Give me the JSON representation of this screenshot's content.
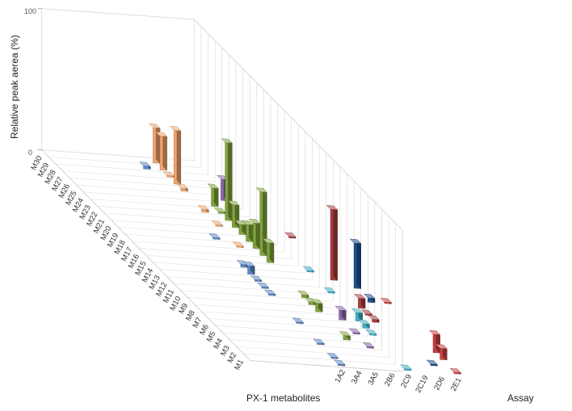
{
  "chart_data": {
    "type": "bar",
    "subtype": "3d-bar",
    "ylabel": "Relative peak aerea (%)",
    "xlabel": "PX-1 metabolites",
    "zlabel": "Assay",
    "ylim": [
      0,
      100
    ],
    "y_ticks": [
      "0",
      "100"
    ],
    "grid": true,
    "metabolites": [
      "M30",
      "M29",
      "M28",
      "M27",
      "M26",
      "M25",
      "M24",
      "M23",
      "M22",
      "M21",
      "M20",
      "M19",
      "M18",
      "M17",
      "M16",
      "M15",
      "M14",
      "M13",
      "M12",
      "M11",
      "M10",
      "M9",
      "M8",
      "M7",
      "M6",
      "M5",
      "M4",
      "M3",
      "M2",
      "M1"
    ],
    "assays": [
      "1A2",
      "3A4",
      "3A5",
      "2B6",
      "2C9",
      "2C19",
      "2D6",
      "2E1"
    ],
    "assay_colors": {
      "1A2": "#5b86c4",
      "3A4": "#f0a46c",
      "3A5": "#7fa33b",
      "2B6": "#8c64a8",
      "2C9": "#3fb0c7",
      "2C19": "#a83a3a",
      "2D6": "#1f4f8c",
      "2E1": "#c93f3f"
    },
    "bars": [
      {
        "metabolite": "M30",
        "assay": "3A4",
        "value": 25
      },
      {
        "metabolite": "M29",
        "assay": "1A2",
        "value": 2
      },
      {
        "metabolite": "M29",
        "assay": "3A4",
        "value": 24
      },
      {
        "metabolite": "M28",
        "assay": "3A4",
        "value": 1
      },
      {
        "metabolite": "M27",
        "assay": "3A4",
        "value": 38
      },
      {
        "metabolite": "M26",
        "assay": "3A4",
        "value": 2
      },
      {
        "metabolite": "M25",
        "assay": "2B6",
        "value": 15
      },
      {
        "metabolite": "M24",
        "assay": "3A5",
        "value": 13
      },
      {
        "metabolite": "M23",
        "assay": "3A4",
        "value": 2
      },
      {
        "metabolite": "M23",
        "assay": "3A5",
        "value": 1
      },
      {
        "metabolite": "M22",
        "assay": "3A5",
        "value": 55
      },
      {
        "metabolite": "M21",
        "assay": "3A4",
        "value": 1
      },
      {
        "metabolite": "M21",
        "assay": "3A5",
        "value": 16
      },
      {
        "metabolite": "M20",
        "assay": "3A5",
        "value": 7
      },
      {
        "metabolite": "M20",
        "assay": "2C19",
        "value": 1
      },
      {
        "metabolite": "M19",
        "assay": "1A2",
        "value": 1
      },
      {
        "metabolite": "M19",
        "assay": "3A5",
        "value": 12
      },
      {
        "metabolite": "M18",
        "assay": "3A4",
        "value": 1
      },
      {
        "metabolite": "M18",
        "assay": "3A5",
        "value": 18
      },
      {
        "metabolite": "M17",
        "assay": "3A5",
        "value": 45
      },
      {
        "metabolite": "M16",
        "assay": "3A5",
        "value": 14
      },
      {
        "metabolite": "M15",
        "assay": "1A2",
        "value": 2
      },
      {
        "metabolite": "M15",
        "assay": "2C9",
        "value": 1
      },
      {
        "metabolite": "M14",
        "assay": "1A2",
        "value": 6
      },
      {
        "metabolite": "M14",
        "assay": "2C19",
        "value": 50
      },
      {
        "metabolite": "M13",
        "assay": "1A2",
        "value": 1
      },
      {
        "metabolite": "M13",
        "assay": "2D6",
        "value": 32
      },
      {
        "metabolite": "M12",
        "assay": "1A2",
        "value": 1
      },
      {
        "metabolite": "M12",
        "assay": "2C9",
        "value": 1
      },
      {
        "metabolite": "M11",
        "assay": "1A2",
        "value": 1
      },
      {
        "metabolite": "M11",
        "assay": "3A5",
        "value": 2
      },
      {
        "metabolite": "M11",
        "assay": "2D6",
        "value": 3
      },
      {
        "metabolite": "M11",
        "assay": "2E1",
        "value": 1
      },
      {
        "metabolite": "M10",
        "assay": "3A5",
        "value": 2
      },
      {
        "metabolite": "M10",
        "assay": "2C19",
        "value": 7
      },
      {
        "metabolite": "M9",
        "assay": "2C19",
        "value": 1
      },
      {
        "metabolite": "M9",
        "assay": "3A5",
        "value": 6
      },
      {
        "metabolite": "M8",
        "assay": "2C19",
        "value": 2
      },
      {
        "metabolite": "M8",
        "assay": "2C9",
        "value": 6
      },
      {
        "metabolite": "M8",
        "assay": "2B6",
        "value": 7
      },
      {
        "metabolite": "M7",
        "assay": "1A2",
        "value": 1
      },
      {
        "metabolite": "M7",
        "assay": "2C9",
        "value": 3
      },
      {
        "metabolite": "M6",
        "assay": "2C9",
        "value": 1
      },
      {
        "metabolite": "M6",
        "assay": "2B6",
        "value": 1
      },
      {
        "metabolite": "M5",
        "assay": "3A5",
        "value": 3
      },
      {
        "metabolite": "M4",
        "assay": "2B6",
        "value": 1
      },
      {
        "metabolite": "M4",
        "assay": "2E1",
        "value": 13
      },
      {
        "metabolite": "M4",
        "assay": "1A2",
        "value": 1
      },
      {
        "metabolite": "M3",
        "assay": "2E1",
        "value": 8
      },
      {
        "metabolite": "M2",
        "assay": "1A2",
        "value": 1
      },
      {
        "metabolite": "M2",
        "assay": "2D6",
        "value": 1
      },
      {
        "metabolite": "M1",
        "assay": "1A2",
        "value": 1
      },
      {
        "metabolite": "M1",
        "assay": "2C9",
        "value": 1
      },
      {
        "metabolite": "M1",
        "assay": "2E1",
        "value": 1
      }
    ]
  }
}
